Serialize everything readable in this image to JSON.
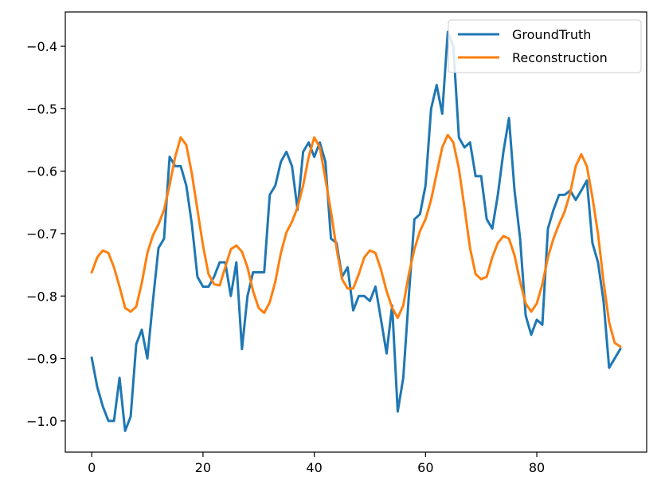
{
  "chart_data": {
    "type": "line",
    "title": "",
    "xlabel": "",
    "ylabel": "",
    "xlim": [
      -4.75,
      99.75
    ],
    "ylim": [
      -1.05,
      -0.345
    ],
    "xticks": [
      0,
      20,
      40,
      60,
      80
    ],
    "yticks": [
      -1.0,
      -0.9,
      -0.8,
      -0.7,
      -0.6,
      -0.5,
      -0.4
    ],
    "xtick_labels": [
      "0",
      "20",
      "40",
      "60",
      "80"
    ],
    "ytick_labels": [
      "−1.0",
      "−0.9",
      "−0.8",
      "−0.7",
      "−0.6",
      "−0.5",
      "−0.4"
    ],
    "grid": false,
    "legend": {
      "position": "top-right"
    },
    "x": [
      0,
      1,
      2,
      3,
      4,
      5,
      6,
      7,
      8,
      9,
      10,
      11,
      12,
      13,
      14,
      15,
      16,
      17,
      18,
      19,
      20,
      21,
      22,
      23,
      24,
      25,
      26,
      27,
      28,
      29,
      30,
      31,
      32,
      33,
      34,
      35,
      36,
      37,
      38,
      39,
      40,
      41,
      42,
      43,
      44,
      45,
      46,
      47,
      48,
      49,
      50,
      51,
      52,
      53,
      54,
      55,
      56,
      57,
      58,
      59,
      60,
      61,
      62,
      63,
      64,
      65,
      66,
      67,
      68,
      69,
      70,
      71,
      72,
      73,
      74,
      75,
      76,
      77,
      78,
      79,
      80,
      81,
      82,
      83,
      84,
      85,
      86,
      87,
      88,
      89,
      90,
      91,
      92,
      93,
      94,
      95
    ],
    "series": [
      {
        "name": "GroundTruth",
        "color": "#1f77b4",
        "values": [
          -0.899,
          -0.946,
          -0.977,
          -1.0,
          -1.0,
          -0.931,
          -1.016,
          -0.993,
          -0.877,
          -0.854,
          -0.9,
          -0.808,
          -0.723,
          -0.708,
          -0.577,
          -0.592,
          -0.592,
          -0.623,
          -0.685,
          -0.769,
          -0.785,
          -0.785,
          -0.769,
          -0.746,
          -0.746,
          -0.8,
          -0.746,
          -0.885,
          -0.8,
          -0.762,
          -0.762,
          -0.762,
          -0.638,
          -0.623,
          -0.585,
          -0.569,
          -0.592,
          -0.662,
          -0.569,
          -0.554,
          -0.577,
          -0.554,
          -0.585,
          -0.708,
          -0.715,
          -0.769,
          -0.754,
          -0.823,
          -0.8,
          -0.8,
          -0.808,
          -0.785,
          -0.838,
          -0.892,
          -0.815,
          -0.985,
          -0.931,
          -0.8,
          -0.677,
          -0.669,
          -0.623,
          -0.5,
          -0.462,
          -0.508,
          -0.377,
          -0.4,
          -0.546,
          -0.562,
          -0.554,
          -0.608,
          -0.608,
          -0.677,
          -0.692,
          -0.638,
          -0.569,
          -0.515,
          -0.631,
          -0.708,
          -0.831,
          -0.862,
          -0.838,
          -0.846,
          -0.692,
          -0.662,
          -0.638,
          -0.638,
          -0.631,
          -0.646,
          -0.631,
          -0.615,
          -0.715,
          -0.746,
          -0.808,
          -0.915,
          -0.9,
          -0.885
        ]
      },
      {
        "name": "Reconstruction",
        "color": "#ff7f0e",
        "values": [
          -0.762,
          -0.738,
          -0.727,
          -0.731,
          -0.754,
          -0.785,
          -0.819,
          -0.825,
          -0.817,
          -0.779,
          -0.731,
          -0.703,
          -0.685,
          -0.662,
          -0.622,
          -0.577,
          -0.546,
          -0.558,
          -0.604,
          -0.662,
          -0.719,
          -0.765,
          -0.781,
          -0.783,
          -0.754,
          -0.725,
          -0.719,
          -0.729,
          -0.754,
          -0.792,
          -0.819,
          -0.827,
          -0.81,
          -0.777,
          -0.731,
          -0.698,
          -0.681,
          -0.658,
          -0.623,
          -0.577,
          -0.546,
          -0.562,
          -0.612,
          -0.665,
          -0.723,
          -0.773,
          -0.788,
          -0.788,
          -0.765,
          -0.738,
          -0.727,
          -0.731,
          -0.758,
          -0.792,
          -0.819,
          -0.835,
          -0.815,
          -0.765,
          -0.725,
          -0.696,
          -0.677,
          -0.646,
          -0.604,
          -0.562,
          -0.542,
          -0.554,
          -0.596,
          -0.658,
          -0.723,
          -0.765,
          -0.773,
          -0.769,
          -0.738,
          -0.715,
          -0.704,
          -0.708,
          -0.735,
          -0.777,
          -0.812,
          -0.825,
          -0.812,
          -0.781,
          -0.738,
          -0.708,
          -0.685,
          -0.665,
          -0.635,
          -0.592,
          -0.573,
          -0.592,
          -0.642,
          -0.7,
          -0.777,
          -0.842,
          -0.875,
          -0.881
        ]
      }
    ]
  }
}
